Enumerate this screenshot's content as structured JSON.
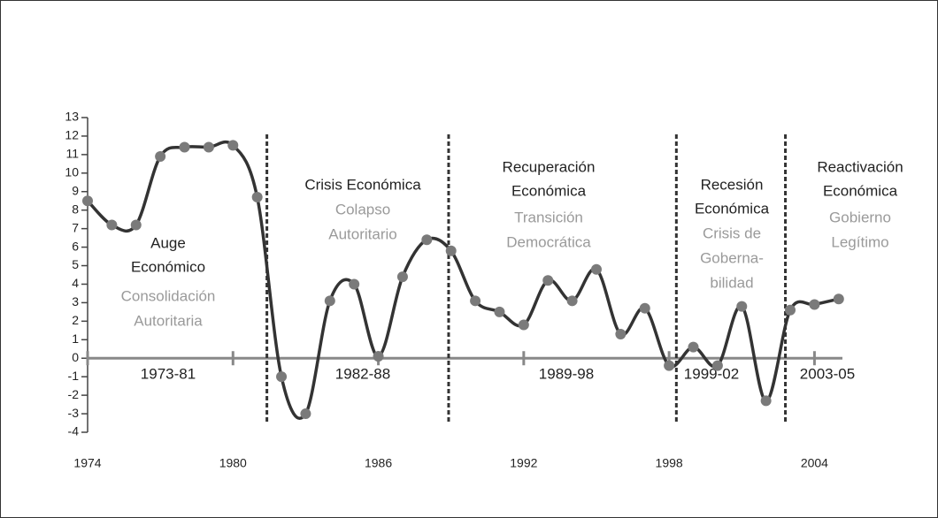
{
  "chart_data": {
    "type": "line",
    "x": [
      1974,
      1975,
      1976,
      1977,
      1978,
      1979,
      1980,
      1981,
      1982,
      1983,
      1984,
      1985,
      1986,
      1987,
      1988,
      1989,
      1990,
      1991,
      1992,
      1993,
      1994,
      1995,
      1996,
      1997,
      1998,
      1999,
      2000,
      2001,
      2002,
      2003,
      2004,
      2005
    ],
    "values": [
      8.5,
      7.2,
      7.2,
      10.9,
      11.4,
      11.4,
      11.5,
      8.7,
      -1,
      -3,
      3.1,
      4.0,
      0.1,
      4.4,
      6.4,
      5.8,
      3.1,
      2.5,
      1.8,
      4.2,
      3.1,
      4.8,
      1.3,
      2.7,
      -0.4,
      0.6,
      -0.4,
      2.8,
      -2.3,
      2.6,
      2.9,
      3.2
    ],
    "color": "#333333",
    "marker_color": "#7a7a7a",
    "xlim": [
      1974,
      2005.3
    ],
    "xticks": [
      1974,
      1980,
      1986,
      1992,
      1998,
      2004
    ],
    "ylim": [
      -4,
      13
    ],
    "yticks": [
      -4,
      -3,
      -2,
      -1,
      0,
      1,
      2,
      3,
      4,
      5,
      6,
      7,
      8,
      9,
      10,
      11,
      12,
      13
    ],
    "dividers": [
      1981.4,
      1988.9,
      1998.3,
      2002.8
    ],
    "periods": [
      {
        "label": "1973-81",
        "title": [
          "Auge",
          "Económico"
        ],
        "subtitle": [
          "Consolidación",
          "Autoritaria"
        ]
      },
      {
        "label": "1982-88",
        "title": [
          "Crisis Económica"
        ],
        "subtitle": [
          "Colapso",
          "Autoritario"
        ]
      },
      {
        "label": "1989-98",
        "title": [
          "Recuperación",
          "Económica"
        ],
        "subtitle": [
          "Transición",
          "Democrática"
        ]
      },
      {
        "label": "1999-02",
        "title": [
          "Recesión",
          "Económica"
        ],
        "subtitle": [
          "Crisis de",
          "Goberna-",
          "bilidad"
        ]
      },
      {
        "label": "2003-05",
        "title": [
          "Reactivación",
          "Económica"
        ],
        "subtitle": [
          "Gobierno",
          "Legítimo"
        ]
      }
    ]
  }
}
